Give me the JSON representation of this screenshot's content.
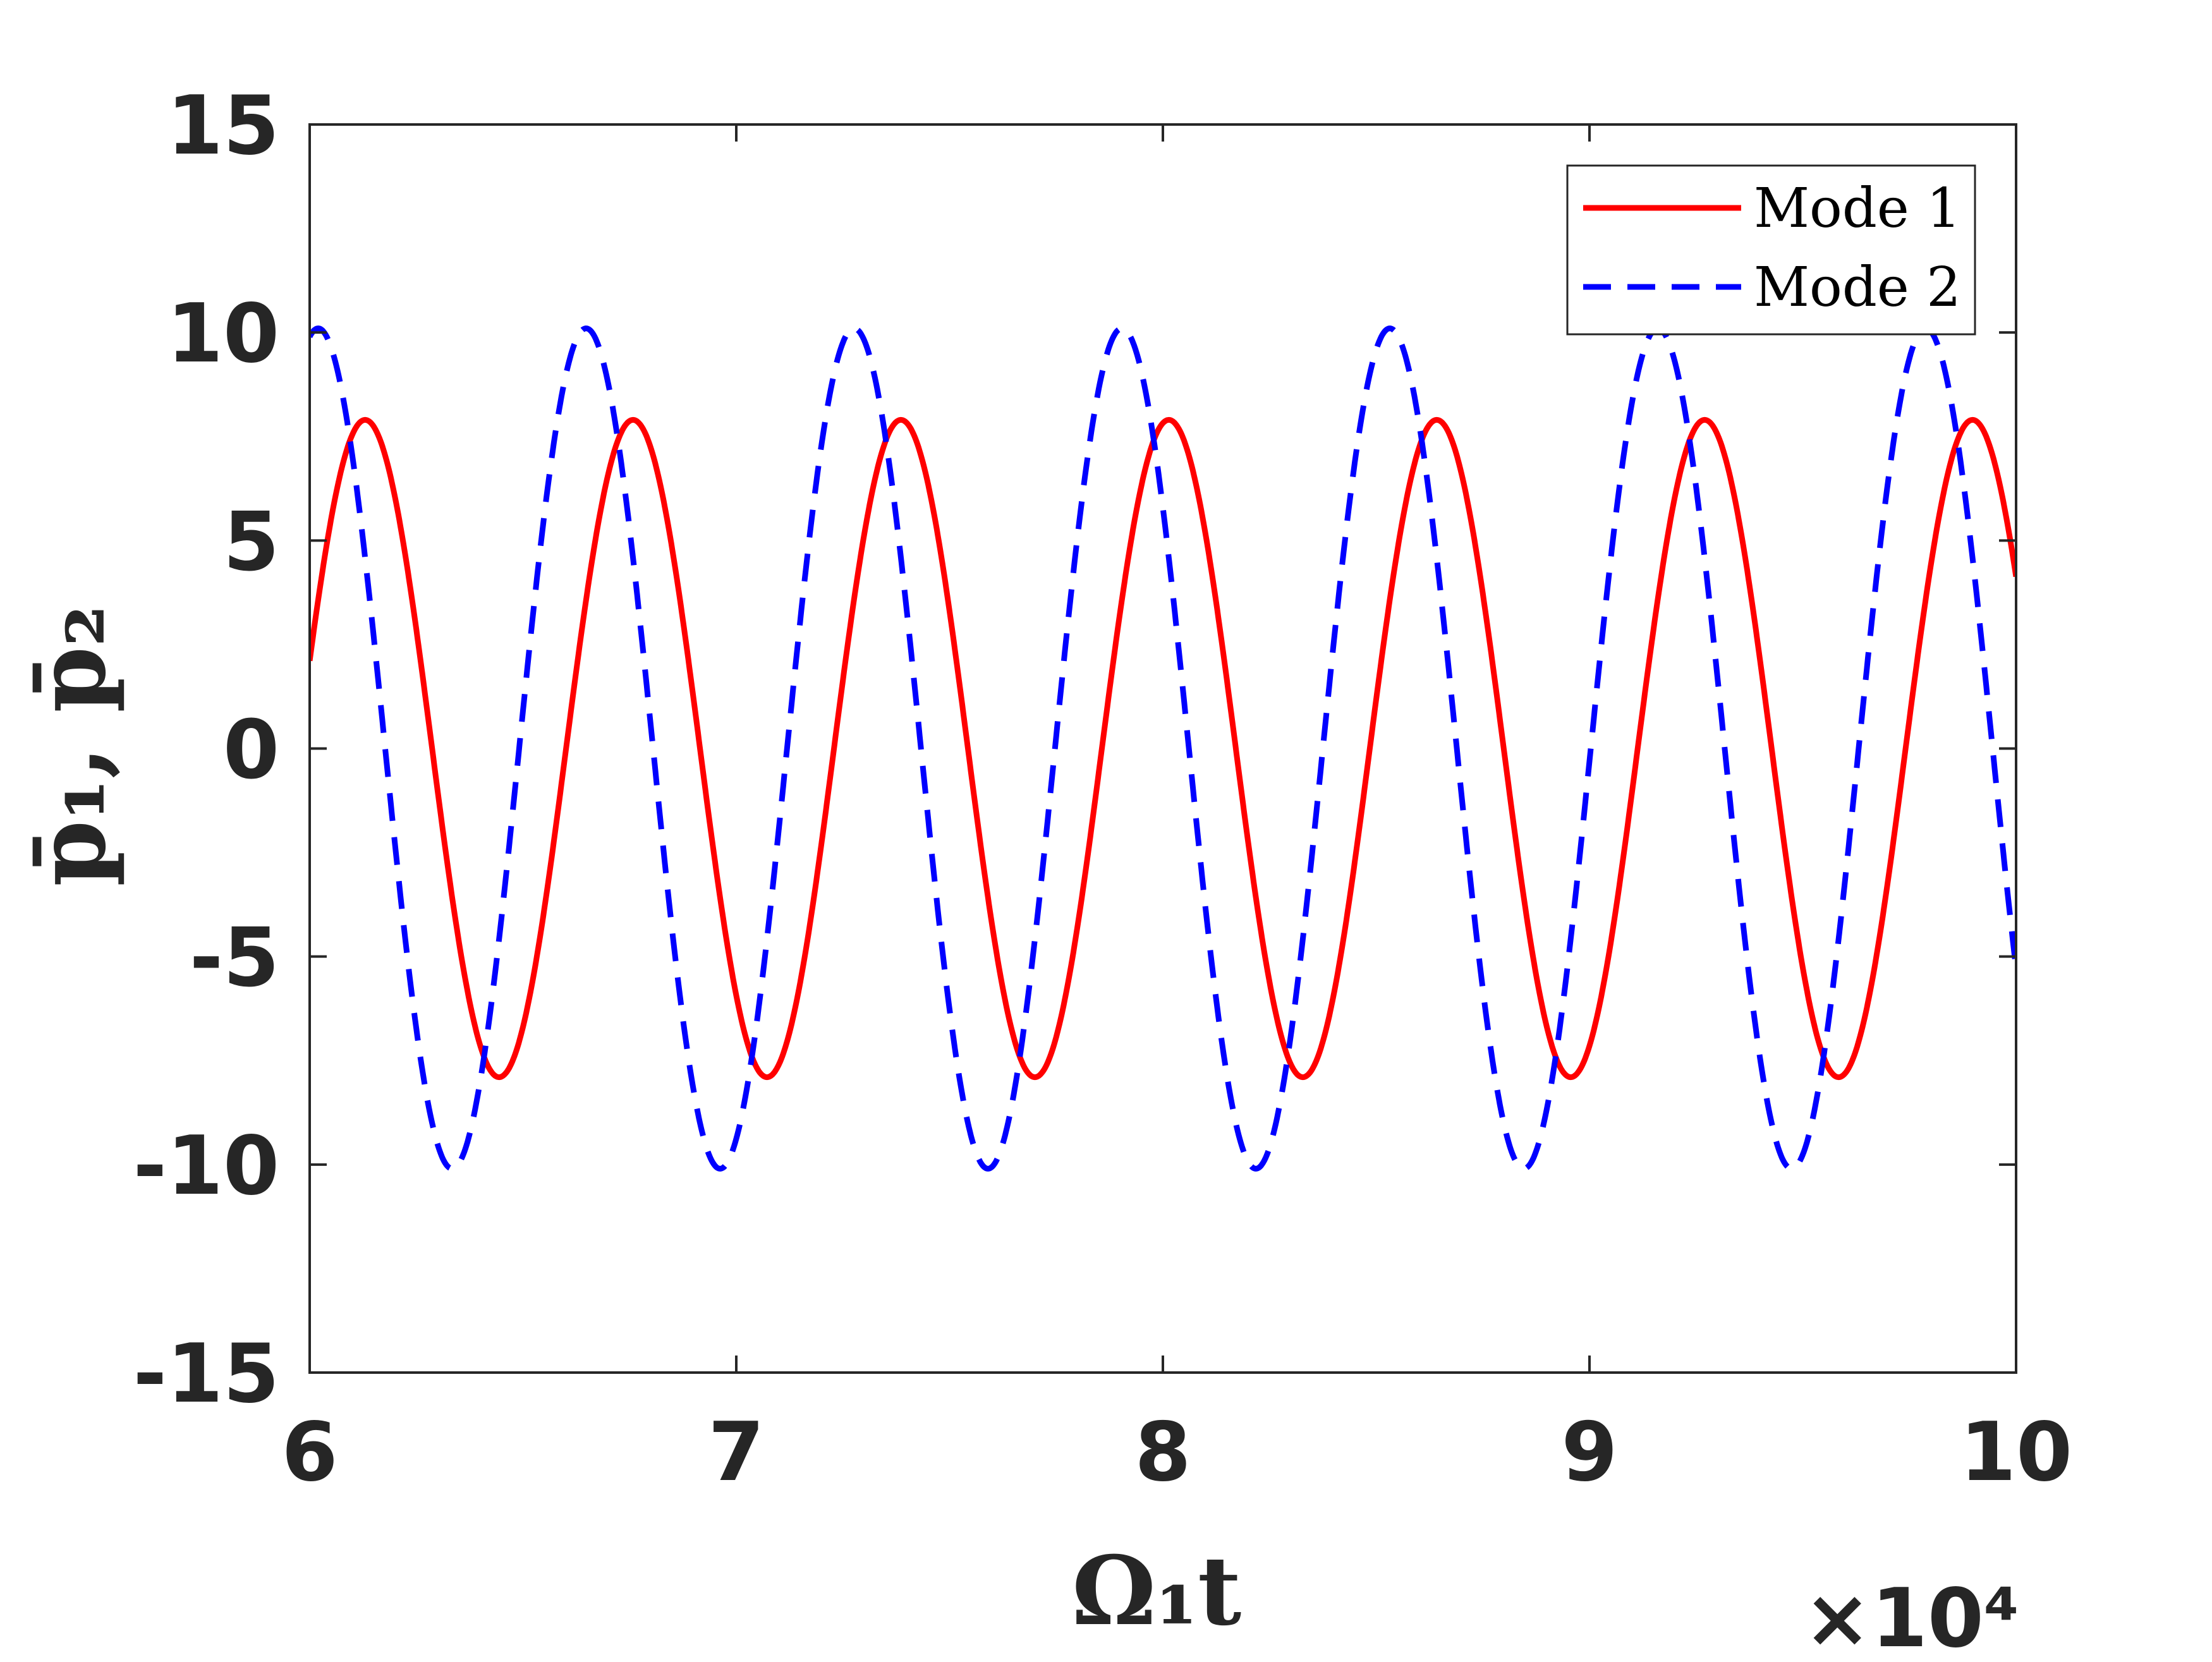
{
  "chart_data": {
    "type": "line",
    "xlabel": "Ω₁t",
    "ylabel": "p̄₁, p̄₂",
    "x_exponent_label": "×10⁴",
    "xlim": [
      6,
      10
    ],
    "ylim": [
      -15,
      15
    ],
    "x_ticks": [
      6,
      7,
      8,
      9,
      10
    ],
    "x_tick_labels": [
      "6",
      "7",
      "8",
      "9",
      "10"
    ],
    "y_ticks": [
      -15,
      -10,
      -5,
      0,
      5,
      10,
      15
    ],
    "y_tick_labels": [
      "-15",
      "-10",
      "-5",
      "0",
      "5",
      "10",
      "15"
    ],
    "grid": false,
    "legend_position": "top-right",
    "series": [
      {
        "name": "Mode 1",
        "color": "#ff0000",
        "style": "solid",
        "amplitude": 7.9,
        "period": 0.628,
        "peak_x": [
          6.13,
          6.76,
          7.39,
          8.02,
          8.64,
          9.27,
          9.9
        ],
        "trough_x": [
          6.45,
          7.08,
          7.71,
          8.33,
          8.96,
          9.59
        ]
      },
      {
        "name": "Mode 2",
        "color": "#0000ff",
        "style": "dashed",
        "amplitude": 10.1,
        "period": 0.628,
        "peak_x": [
          6.02,
          6.64,
          7.27,
          7.9,
          8.52,
          9.15,
          9.78
        ],
        "trough_x": [
          6.33,
          6.96,
          7.58,
          8.21,
          8.84,
          9.47
        ]
      }
    ]
  }
}
